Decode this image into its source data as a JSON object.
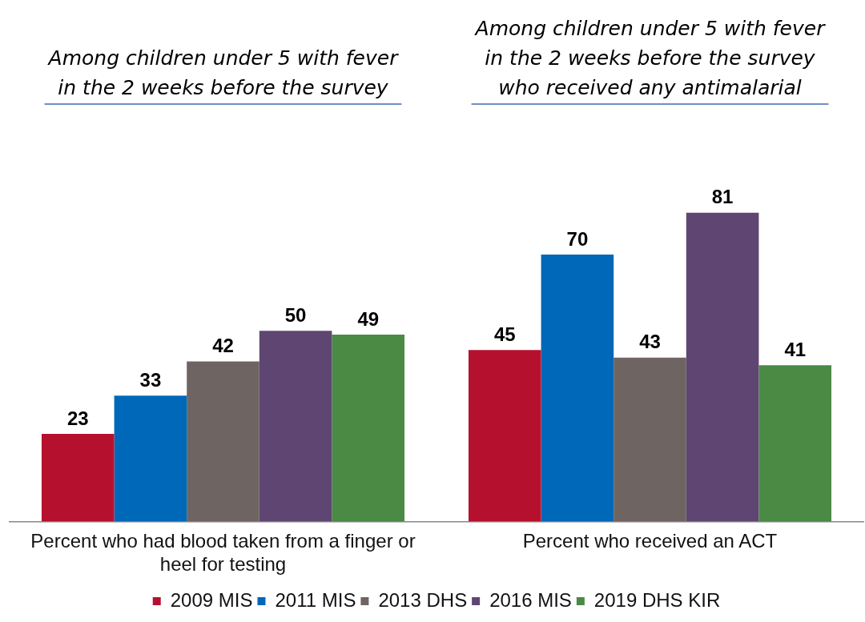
{
  "chart_data": {
    "type": "bar",
    "categories": [
      "Percent who had blood taken from a finger or heel for testing",
      "Percent who received an ACT"
    ],
    "series": [
      {
        "name": "2009 MIS",
        "color": "#b5112e",
        "values": [
          23,
          45
        ]
      },
      {
        "name": "2011 MIS",
        "color": "#0068b8",
        "values": [
          33,
          70
        ]
      },
      {
        "name": "2013 DHS",
        "color": "#6e6562",
        "values": [
          42,
          43
        ]
      },
      {
        "name": "2016 MIS",
        "color": "#5f4672",
        "values": [
          50,
          81
        ]
      },
      {
        "name": "2019 DHS KIR",
        "color": "#4a8a44",
        "values": [
          49,
          41
        ]
      }
    ],
    "annotations": [
      "Among children under 5 with fever in the 2 weeks before the survey",
      "Among children under 5 with fever in the 2 weeks before the survey who received any antimalarial"
    ],
    "data_labels": true,
    "grid": false,
    "legend": "bottom",
    "tick_labels": "x"
  }
}
